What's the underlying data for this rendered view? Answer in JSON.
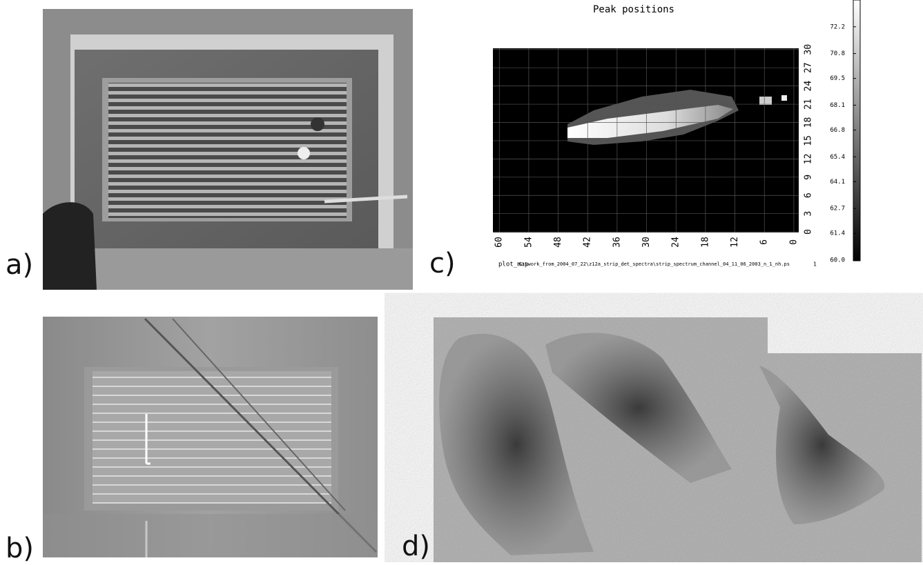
{
  "panels": {
    "a": {
      "label": "a)"
    },
    "b": {
      "label": "b)"
    },
    "c": {
      "label": "c)"
    },
    "d": {
      "label": "d)"
    }
  },
  "plot": {
    "title": "Peak positions",
    "xlim": [
      61.3,
      -1
    ],
    "xticks": [
      60,
      54,
      48,
      42,
      36,
      30,
      24,
      18,
      12,
      6,
      0
    ],
    "ylim": [
      -0.1,
      30.2
    ],
    "yticks": [
      0,
      3,
      6,
      9,
      12,
      15,
      18,
      21,
      24,
      27,
      30
    ],
    "colorbar": {
      "lim": [
        60,
        73.6
      ],
      "ticks": [
        {
          "value": 60,
          "label": "60.0"
        },
        61.4,
        62.7,
        64.1,
        65.4,
        66.8,
        68.1,
        69.5,
        70.8,
        72.2
      ]
    },
    "footer": {
      "program": "plot_map",
      "file": "C:\\work_from_2004_07_22\\z12a_strip_det_spectra\\strip_spectrum_channel_04_11_06_2003_n_1_nh.ps",
      "page": "1"
    }
  }
}
